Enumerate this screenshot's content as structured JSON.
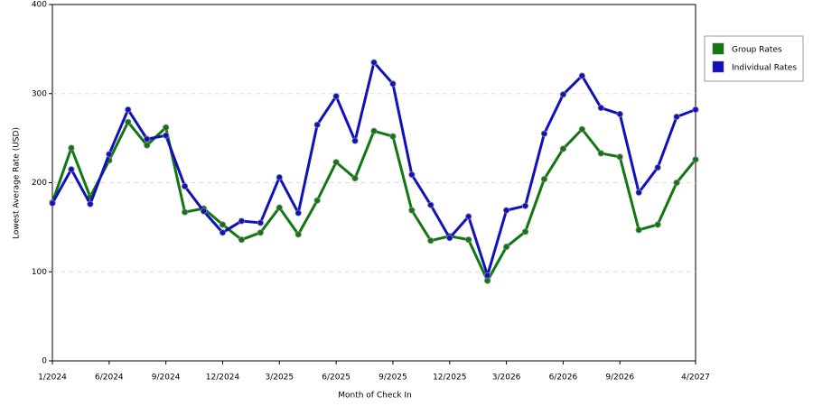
{
  "chart_data": {
    "type": "line",
    "x_label": "Month of Check In",
    "y_label": "Lowest Average Rate (USD)",
    "categories": [
      "1/2024",
      null,
      null,
      "6/2024",
      null,
      null,
      "9/2024",
      null,
      null,
      "12/2024",
      null,
      null,
      "3/2025",
      null,
      null,
      "6/2025",
      null,
      null,
      "9/2025",
      null,
      null,
      "12/2025",
      null,
      null,
      "3/2026",
      null,
      null,
      "6/2026",
      null,
      null,
      "9/2026",
      null,
      null,
      null,
      "4/2027"
    ],
    "series": [
      {
        "name": "Group Rates",
        "color": "#117711",
        "values": [
          178,
          239,
          184,
          225,
          268,
          242,
          262,
          167,
          171,
          153,
          136,
          144,
          172,
          142,
          180,
          223,
          205,
          258,
          252,
          169,
          135,
          140,
          136,
          90,
          128,
          145,
          204,
          238,
          260,
          233,
          229,
          147,
          153,
          200,
          226
        ]
      },
      {
        "name": "Individual Rates",
        "color": "#1111bb",
        "values": [
          177,
          215,
          176,
          232,
          282,
          249,
          253,
          196,
          168,
          144,
          157,
          155,
          206,
          166,
          265,
          297,
          247,
          335,
          311,
          209,
          175,
          138,
          162,
          96,
          169,
          174,
          255,
          299,
          320,
          284,
          277,
          189,
          217,
          274,
          282
        ]
      }
    ],
    "ylim": [
      0,
      400
    ],
    "yticks": [
      0,
      100,
      200,
      300,
      400
    ],
    "grid": true,
    "legend": "top-right"
  }
}
